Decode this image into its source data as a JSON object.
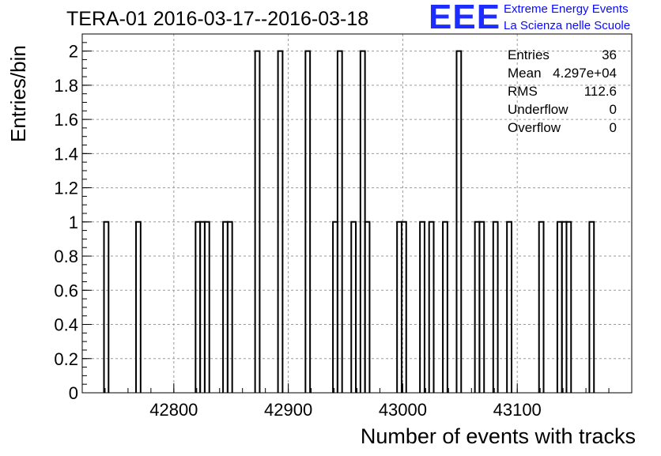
{
  "header": {
    "title": "TERA-01 2016-03-17--2016-03-18"
  },
  "logo": {
    "mark": "EEE",
    "line1": "Extreme Energy Events",
    "line2": "La Scienza nelle Scuole",
    "color": "#1e2dff"
  },
  "stats": [
    {
      "name": "Entries",
      "value": "36"
    },
    {
      "name": "Mean",
      "value": "4.297e+04"
    },
    {
      "name": "RMS",
      "value": "112.6"
    },
    {
      "name": "Underflow",
      "value": "0"
    },
    {
      "name": "Overflow",
      "value": "0"
    }
  ],
  "chart_data": {
    "type": "bar",
    "style": "step histogram",
    "xlabel": "Number of events with tracks",
    "ylabel": "Entries/bin",
    "xlim": [
      42720,
      43200
    ],
    "ylim": [
      0,
      2.1
    ],
    "xticks": [
      42800,
      42900,
      43000,
      43100
    ],
    "yticks": [
      0,
      0.2,
      0.4,
      0.6,
      0.8,
      1,
      1.2,
      1.4,
      1.6,
      1.8,
      2
    ],
    "ytick_labels": [
      "0",
      "0.2",
      "0.4",
      "0.6",
      "0.8",
      "1",
      "1.2",
      "1.4",
      "1.6",
      "1.8",
      "2"
    ],
    "grid": true,
    "bin_width": 4,
    "bins": [
      {
        "x_low": 42739,
        "value": 1
      },
      {
        "x_low": 42767,
        "value": 1
      },
      {
        "x_low": 42819,
        "value": 1
      },
      {
        "x_low": 42823,
        "value": 1
      },
      {
        "x_low": 42827,
        "value": 1
      },
      {
        "x_low": 42843,
        "value": 1
      },
      {
        "x_low": 42847,
        "value": 1
      },
      {
        "x_low": 42871,
        "value": 2
      },
      {
        "x_low": 42891,
        "value": 2
      },
      {
        "x_low": 42915,
        "value": 2
      },
      {
        "x_low": 42939,
        "value": 1
      },
      {
        "x_low": 42943,
        "value": 2
      },
      {
        "x_low": 42955,
        "value": 1
      },
      {
        "x_low": 42963,
        "value": 2
      },
      {
        "x_low": 42967,
        "value": 1
      },
      {
        "x_low": 42995,
        "value": 1
      },
      {
        "x_low": 42999,
        "value": 1
      },
      {
        "x_low": 43015,
        "value": 1
      },
      {
        "x_low": 43023,
        "value": 1
      },
      {
        "x_low": 43035,
        "value": 1
      },
      {
        "x_low": 43047,
        "value": 2
      },
      {
        "x_low": 43063,
        "value": 1
      },
      {
        "x_low": 43067,
        "value": 1
      },
      {
        "x_low": 43079,
        "value": 1
      },
      {
        "x_low": 43091,
        "value": 1
      },
      {
        "x_low": 43119,
        "value": 1
      },
      {
        "x_low": 43135,
        "value": 1
      },
      {
        "x_low": 43139,
        "value": 1
      },
      {
        "x_low": 43143,
        "value": 1
      },
      {
        "x_low": 43163,
        "value": 1
      }
    ],
    "line_color": "#000000",
    "grid_color": "#9a9a9a"
  }
}
